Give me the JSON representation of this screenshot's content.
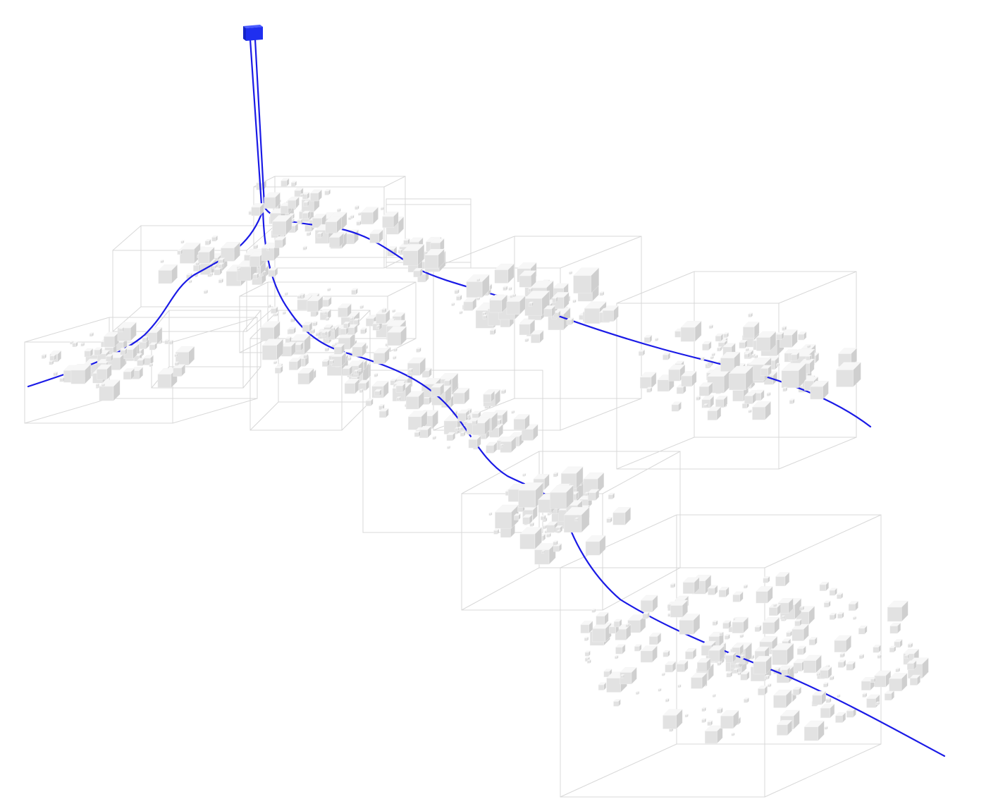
{
  "colors": {
    "background": "#ffffff",
    "path_line": "#1a1ae6",
    "root_cube": "#1f2ff0",
    "box_edge": "#d8d8d8",
    "cube_top": "#f7f7f7",
    "cube_left": "#e2e2e2",
    "cube_right": "#cfcfcf"
  },
  "icons": {
    "root": "blue-cube-icon",
    "element": "white-cube-icon"
  }
}
